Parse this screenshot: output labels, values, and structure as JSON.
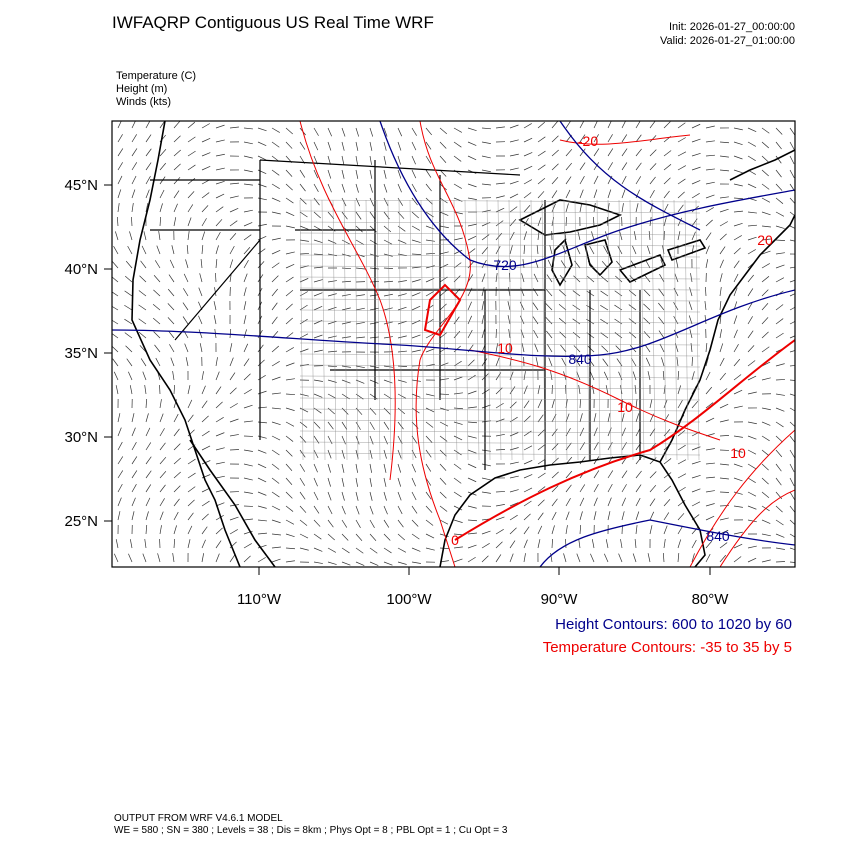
{
  "header": {
    "title": "IWFAQRP Contiguous US Real Time WRF",
    "init": "Init: 2026-01-27_00:00:00",
    "valid": "Valid: 2026-01-27_01:00:00"
  },
  "fields": [
    "Temperature   (C)",
    "Height   (m)",
    "Winds   (kts)"
  ],
  "map": {
    "lat_labels": [
      "45°N",
      "40°N",
      "35°N",
      "30°N",
      "25°N"
    ],
    "lon_labels": [
      "110°W",
      "100°W",
      "90°W",
      "80°W"
    ],
    "contour_labels": [
      "-20",
      "720",
      "10",
      "840",
      "10",
      "10",
      "0",
      "840",
      "20"
    ]
  },
  "legend": {
    "height": "Height Contours: 600 to 1020 by 60",
    "temperature": "Temperature Contours: -35 to 35 by 5"
  },
  "footer": {
    "model": "OUTPUT FROM WRF V4.6.1 MODEL",
    "settings": "WE = 580 ; SN = 380 ; Levels = 38 ; Dis = 8km ; Phys Opt = 8 ; PBL Opt = 1 ; Cu Opt = 3"
  }
}
